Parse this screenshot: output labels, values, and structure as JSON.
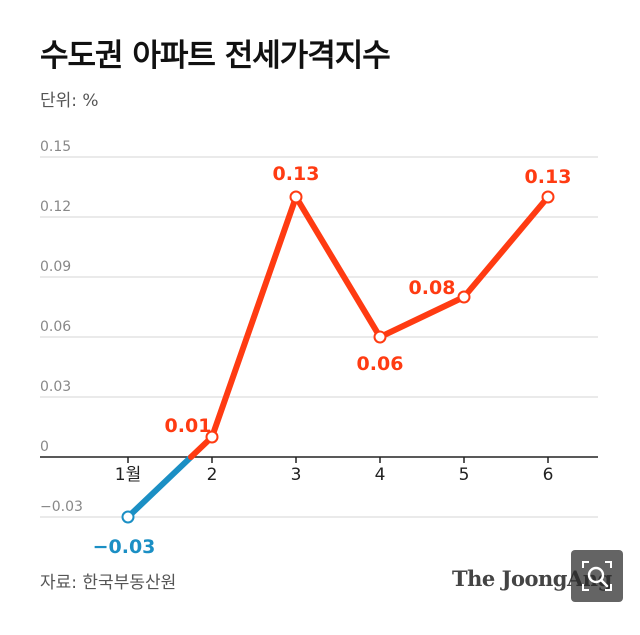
{
  "header": {
    "title": "수도권 아파트 전세가격지수",
    "unit": "단위: %"
  },
  "footer": {
    "source": "자료: 한국부동산원",
    "brand": "The JoongAng"
  },
  "colors": {
    "positive": "#ff3b12",
    "negative": "#1b8fc4",
    "grid": "#d5d5d5"
  },
  "chart_data": {
    "type": "line",
    "title": "수도권 아파트 전세가격지수",
    "ylabel": "단위: %",
    "categories": [
      "1월",
      "2",
      "3",
      "4",
      "5",
      "6"
    ],
    "values": [
      -0.03,
      0.01,
      0.13,
      0.06,
      0.08,
      0.13
    ],
    "value_labels": [
      "−0.03",
      "0.01",
      "0.13",
      "0.06",
      "0.08",
      "0.13"
    ],
    "yticks": [
      -0.03,
      0,
      0.03,
      0.06,
      0.09,
      0.12,
      0.15
    ],
    "ytick_labels": [
      "−0.03",
      "0",
      "0.03",
      "0.06",
      "0.09",
      "0.12",
      "0.15"
    ],
    "ylim": [
      -0.03,
      0.15
    ]
  }
}
